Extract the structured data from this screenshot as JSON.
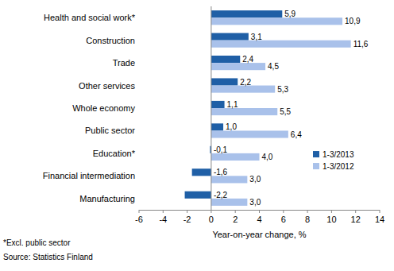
{
  "chart_data": {
    "type": "bar",
    "orientation": "horizontal",
    "categories": [
      "Health and social work*",
      "Construction",
      "Trade",
      "Other services",
      "Whole economy",
      "Public sector",
      "Education*",
      "Financial intermediation",
      "Manufacturing"
    ],
    "series": [
      {
        "name": "1-3/2013",
        "color": "#1f5fa6",
        "values": [
          5.9,
          3.1,
          2.4,
          2.2,
          1.1,
          1.0,
          -0.1,
          -1.6,
          -2.2
        ],
        "value_labels": [
          "5,9",
          "3,1",
          "2,4",
          "2,2",
          "1,1",
          "1,0",
          "-0,1",
          "-1,6",
          "-2,2"
        ]
      },
      {
        "name": "1-3/2012",
        "color": "#a9c1ea",
        "values": [
          10.9,
          11.6,
          4.5,
          5.3,
          5.5,
          6.4,
          4.0,
          3.0,
          3.0
        ],
        "value_labels": [
          "10,9",
          "11,6",
          "4,5",
          "5,3",
          "5,5",
          "6,4",
          "4,0",
          "3,0",
          "3,0"
        ]
      }
    ],
    "xlim": [
      -6,
      14
    ],
    "xticks": [
      -6,
      -4,
      -2,
      0,
      2,
      4,
      6,
      8,
      10,
      12,
      14
    ],
    "x_label": "Year-on-year change, %",
    "annotations": [
      "*Excl. public sector",
      "Source: Statistics Finland"
    ],
    "data_labels": true,
    "grid": false,
    "legend": "right"
  }
}
